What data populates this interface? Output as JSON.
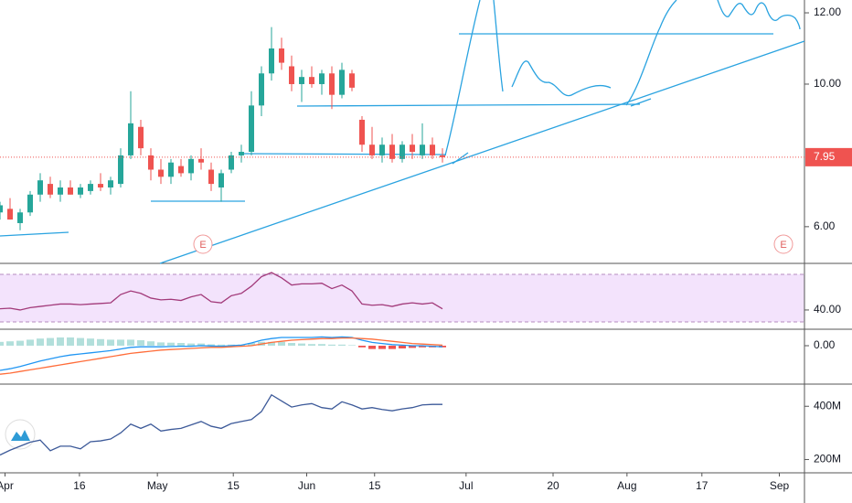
{
  "chart_data": [
    {
      "type": "candlestick",
      "x": [
        0,
        2,
        4,
        6,
        8,
        10,
        12,
        14,
        16,
        18,
        20,
        22,
        24,
        26,
        28,
        30,
        32,
        34,
        36,
        38,
        40,
        42,
        44,
        46,
        48,
        50,
        52,
        54,
        56,
        58,
        60,
        62,
        64,
        66,
        68,
        70,
        72,
        74,
        76,
        78,
        80,
        82,
        84,
        86,
        88
      ],
      "open": [
        6.4,
        6.5,
        6.1,
        6.4,
        6.9,
        7.2,
        6.9,
        7.1,
        6.9,
        7.0,
        7.2,
        7.1,
        7.2,
        8.0,
        8.8,
        8.0,
        7.6,
        7.4,
        7.7,
        7.5,
        7.9,
        7.6,
        7.1,
        7.6,
        8.0,
        8.1,
        9.4,
        10.3,
        11.0,
        10.5,
        10.0,
        10.2,
        10.0,
        10.3,
        9.7,
        10.3,
        9.0,
        8.3,
        8.0,
        8.3,
        7.9,
        8.3,
        8.0,
        8.3,
        8.0
      ],
      "high": [
        6.7,
        6.8,
        6.5,
        7.0,
        7.5,
        7.4,
        7.3,
        7.3,
        7.2,
        7.3,
        7.5,
        7.4,
        8.2,
        9.8,
        9.0,
        8.2,
        7.9,
        7.9,
        7.9,
        8.0,
        8.2,
        7.8,
        7.6,
        8.1,
        8.3,
        9.8,
        10.5,
        11.6,
        11.3,
        10.8,
        10.4,
        10.5,
        10.4,
        10.5,
        10.6,
        10.4,
        9.1,
        8.8,
        8.5,
        8.6,
        8.4,
        8.6,
        8.9,
        8.5,
        8.2
      ],
      "low": [
        6.2,
        6.2,
        5.9,
        6.3,
        6.7,
        6.8,
        6.7,
        6.9,
        6.8,
        6.9,
        7.0,
        6.9,
        7.1,
        7.9,
        8.0,
        7.3,
        7.2,
        7.2,
        7.4,
        7.3,
        7.6,
        7.0,
        6.7,
        7.5,
        7.8,
        8.0,
        9.1,
        10.1,
        10.4,
        9.8,
        9.5,
        9.9,
        9.7,
        9.3,
        9.6,
        9.8,
        8.1,
        7.9,
        7.8,
        7.8,
        7.8,
        7.9,
        7.9,
        7.9,
        7.8
      ],
      "close": [
        6.6,
        6.2,
        6.4,
        6.9,
        7.3,
        6.9,
        7.1,
        6.9,
        7.1,
        7.2,
        7.1,
        7.3,
        8.0,
        8.9,
        8.2,
        7.6,
        7.4,
        7.8,
        7.5,
        7.9,
        7.8,
        7.2,
        7.5,
        8.0,
        8.1,
        9.4,
        10.3,
        11.0,
        10.6,
        10.0,
        10.2,
        10.0,
        10.3,
        9.7,
        10.4,
        9.9,
        8.3,
        8.0,
        8.3,
        7.9,
        8.3,
        8.1,
        8.3,
        8.0,
        7.95
      ],
      "up_color": "#26a69a",
      "down_color": "#ef5350",
      "xlim": [
        0,
        160
      ],
      "xticks": [
        {
          "value": 1,
          "label": "Apr"
        },
        {
          "value": 15.8,
          "label": "16"
        },
        {
          "value": 31.3,
          "label": "May"
        },
        {
          "value": 46.4,
          "label": "15"
        },
        {
          "value": 61,
          "label": "Jun"
        },
        {
          "value": 74.5,
          "label": "15"
        },
        {
          "value": 92.7,
          "label": "Jul"
        },
        {
          "value": 110,
          "label": "20"
        },
        {
          "value": 124.7,
          "label": "Aug"
        },
        {
          "value": 139.6,
          "label": "17"
        },
        {
          "value": 155,
          "label": "Sep"
        }
      ],
      "ylim": [
        4.97,
        12.36
      ],
      "yticks": [
        {
          "value": 6,
          "label": "6.00"
        },
        {
          "value": 10,
          "label": "10.00"
        },
        {
          "value": 12,
          "label": "12.00"
        }
      ],
      "last_price": 7.95,
      "annotations": [
        "E",
        "E"
      ]
    },
    {
      "type": "line",
      "values": [
        41,
        41.5,
        40,
        42,
        43,
        44,
        45,
        45,
        44.5,
        45,
        45.5,
        46,
        53,
        56,
        54,
        50,
        48.5,
        49,
        48,
        51,
        53,
        47,
        46,
        52,
        54,
        60,
        68,
        71.5,
        67,
        61,
        62,
        62,
        62.5,
        58,
        61,
        56,
        45,
        44,
        44.5,
        43,
        45,
        46,
        45,
        46,
        41
      ],
      "color": "#a23a7a",
      "band": [
        30,
        70
      ],
      "ylim": [
        23.8,
        79.2
      ],
      "yticks": [
        {
          "value": 40,
          "label": "40.00"
        }
      ]
    },
    {
      "type": "macd",
      "series": [
        {
          "color": "#2196f3",
          "values": [
            -0.45,
            -0.42,
            -0.38,
            -0.33,
            -0.28,
            -0.24,
            -0.2,
            -0.17,
            -0.15,
            -0.13,
            -0.11,
            -0.09,
            -0.06,
            -0.03,
            -0.02,
            -0.02,
            -0.02,
            -0.015,
            -0.01,
            -0.01,
            0,
            -0.005,
            -0.01,
            0,
            0.01,
            0.05,
            0.1,
            0.13,
            0.15,
            0.15,
            0.15,
            0.15,
            0.16,
            0.15,
            0.16,
            0.15,
            0.1,
            0.06,
            0.04,
            0.02,
            0.01,
            0,
            0,
            -0.01,
            -0.02
          ]
        },
        {
          "color": "#ff6d3a",
          "values": [
            -0.52,
            -0.5,
            -0.47,
            -0.44,
            -0.41,
            -0.38,
            -0.35,
            -0.32,
            -0.29,
            -0.26,
            -0.23,
            -0.2,
            -0.17,
            -0.14,
            -0.12,
            -0.1,
            -0.08,
            -0.07,
            -0.06,
            -0.05,
            -0.04,
            -0.03,
            -0.03,
            -0.02,
            -0.01,
            0,
            0.03,
            0.06,
            0.08,
            0.1,
            0.11,
            0.12,
            0.13,
            0.13,
            0.14,
            0.14,
            0.13,
            0.12,
            0.1,
            0.08,
            0.06,
            0.04,
            0.03,
            0.02,
            0.01
          ]
        }
      ],
      "histogram": [
        0.07,
        0.08,
        0.09,
        0.11,
        0.13,
        0.14,
        0.15,
        0.15,
        0.14,
        0.13,
        0.12,
        0.11,
        0.11,
        0.11,
        0.1,
        0.08,
        0.06,
        0.055,
        0.05,
        0.04,
        0.04,
        0.025,
        0.02,
        0.02,
        0.02,
        0.05,
        0.07,
        0.07,
        0.07,
        0.05,
        0.04,
        0.03,
        0.03,
        0.02,
        0.02,
        0.01,
        -0.03,
        -0.06,
        -0.06,
        -0.06,
        -0.05,
        -0.04,
        -0.03,
        -0.03,
        -0.03
      ],
      "hist_up_color": "#b2dfdb",
      "hist_down_color": "#ef5350",
      "ylim": [
        -0.7,
        0.3
      ],
      "yticks": [
        {
          "value": 0,
          "label": "0.00"
        }
      ]
    },
    {
      "type": "line",
      "values": [
        217,
        235,
        250,
        265,
        273,
        233,
        250,
        250,
        240,
        267,
        270,
        277,
        300,
        333,
        317,
        333,
        307,
        313,
        317,
        330,
        343,
        325,
        317,
        335,
        343,
        350,
        380,
        443,
        420,
        397,
        405,
        410,
        395,
        390,
        417,
        405,
        390,
        395,
        388,
        383,
        390,
        395,
        405,
        407,
        407
      ],
      "color": "#3d5a99",
      "ylim": [
        150,
        483.3
      ],
      "yticks": [
        {
          "value": 200,
          "label": "200M"
        },
        {
          "value": 400,
          "label": "400M"
        }
      ]
    }
  ]
}
